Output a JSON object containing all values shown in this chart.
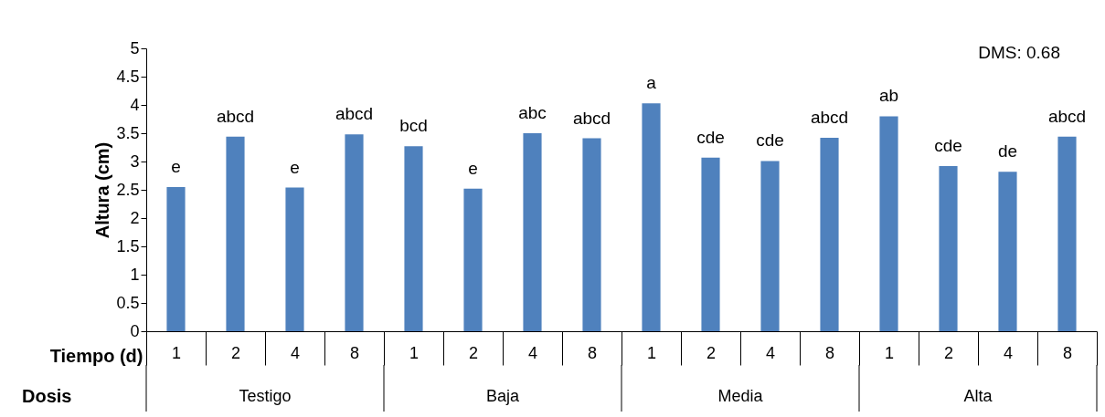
{
  "chart_data": {
    "type": "bar",
    "ylabel": "Altura (cm)",
    "xlabel": "Tiempo (d)",
    "categories": [
      "1",
      "2",
      "4",
      "8",
      "1",
      "2",
      "4",
      "8",
      "1",
      "2",
      "4",
      "8",
      "1",
      "2",
      "4",
      "8"
    ],
    "values": [
      2.55,
      3.44,
      2.54,
      3.48,
      3.27,
      2.52,
      3.5,
      3.41,
      4.03,
      3.07,
      3.01,
      3.42,
      3.8,
      2.92,
      2.82,
      3.44
    ],
    "value_labels": [
      "e",
      "abcd",
      "e",
      "abcd",
      "bcd",
      "e",
      "abc",
      "abcd",
      "a",
      "cde",
      "cde",
      "abcd",
      "ab",
      "cde",
      "de",
      "abcd"
    ],
    "color": "#4f81bd",
    "ylim": [
      0,
      5
    ],
    "yticks": [
      0,
      0.5,
      1,
      1.5,
      2,
      2.5,
      3,
      3.5,
      4,
      4.5,
      5
    ],
    "annotations": [
      "DMS: 0.68",
      "Dosis",
      "Testigo",
      "Baja",
      "Media",
      "Alta"
    ]
  }
}
